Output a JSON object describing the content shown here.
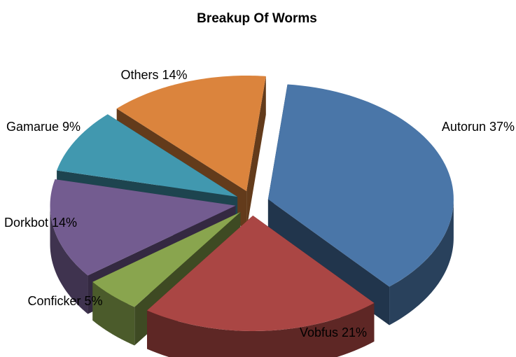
{
  "chart_data": {
    "type": "pie",
    "style": "3d-exploded",
    "title": "Breakup Of Worms",
    "slices": [
      {
        "label": "Autorun 37%",
        "name": "Autorun",
        "value": 37,
        "color": "#4A76A8"
      },
      {
        "label": "Vobfus 21%",
        "name": "Vobfus",
        "value": 21,
        "color": "#AA4644"
      },
      {
        "label": "Conficker 5%",
        "name": "Conficker",
        "value": 5,
        "color": "#89A54E"
      },
      {
        "label": "Dorkbot 14%",
        "name": "Dorkbot",
        "value": 14,
        "color": "#735C90"
      },
      {
        "label": "Gamarue 9%",
        "name": "Gamarue",
        "value": 9,
        "color": "#4198AF"
      },
      {
        "label": "Others 14%",
        "name": "Others",
        "value": 14,
        "color": "#DB843D"
      }
    ],
    "legend": "none"
  }
}
